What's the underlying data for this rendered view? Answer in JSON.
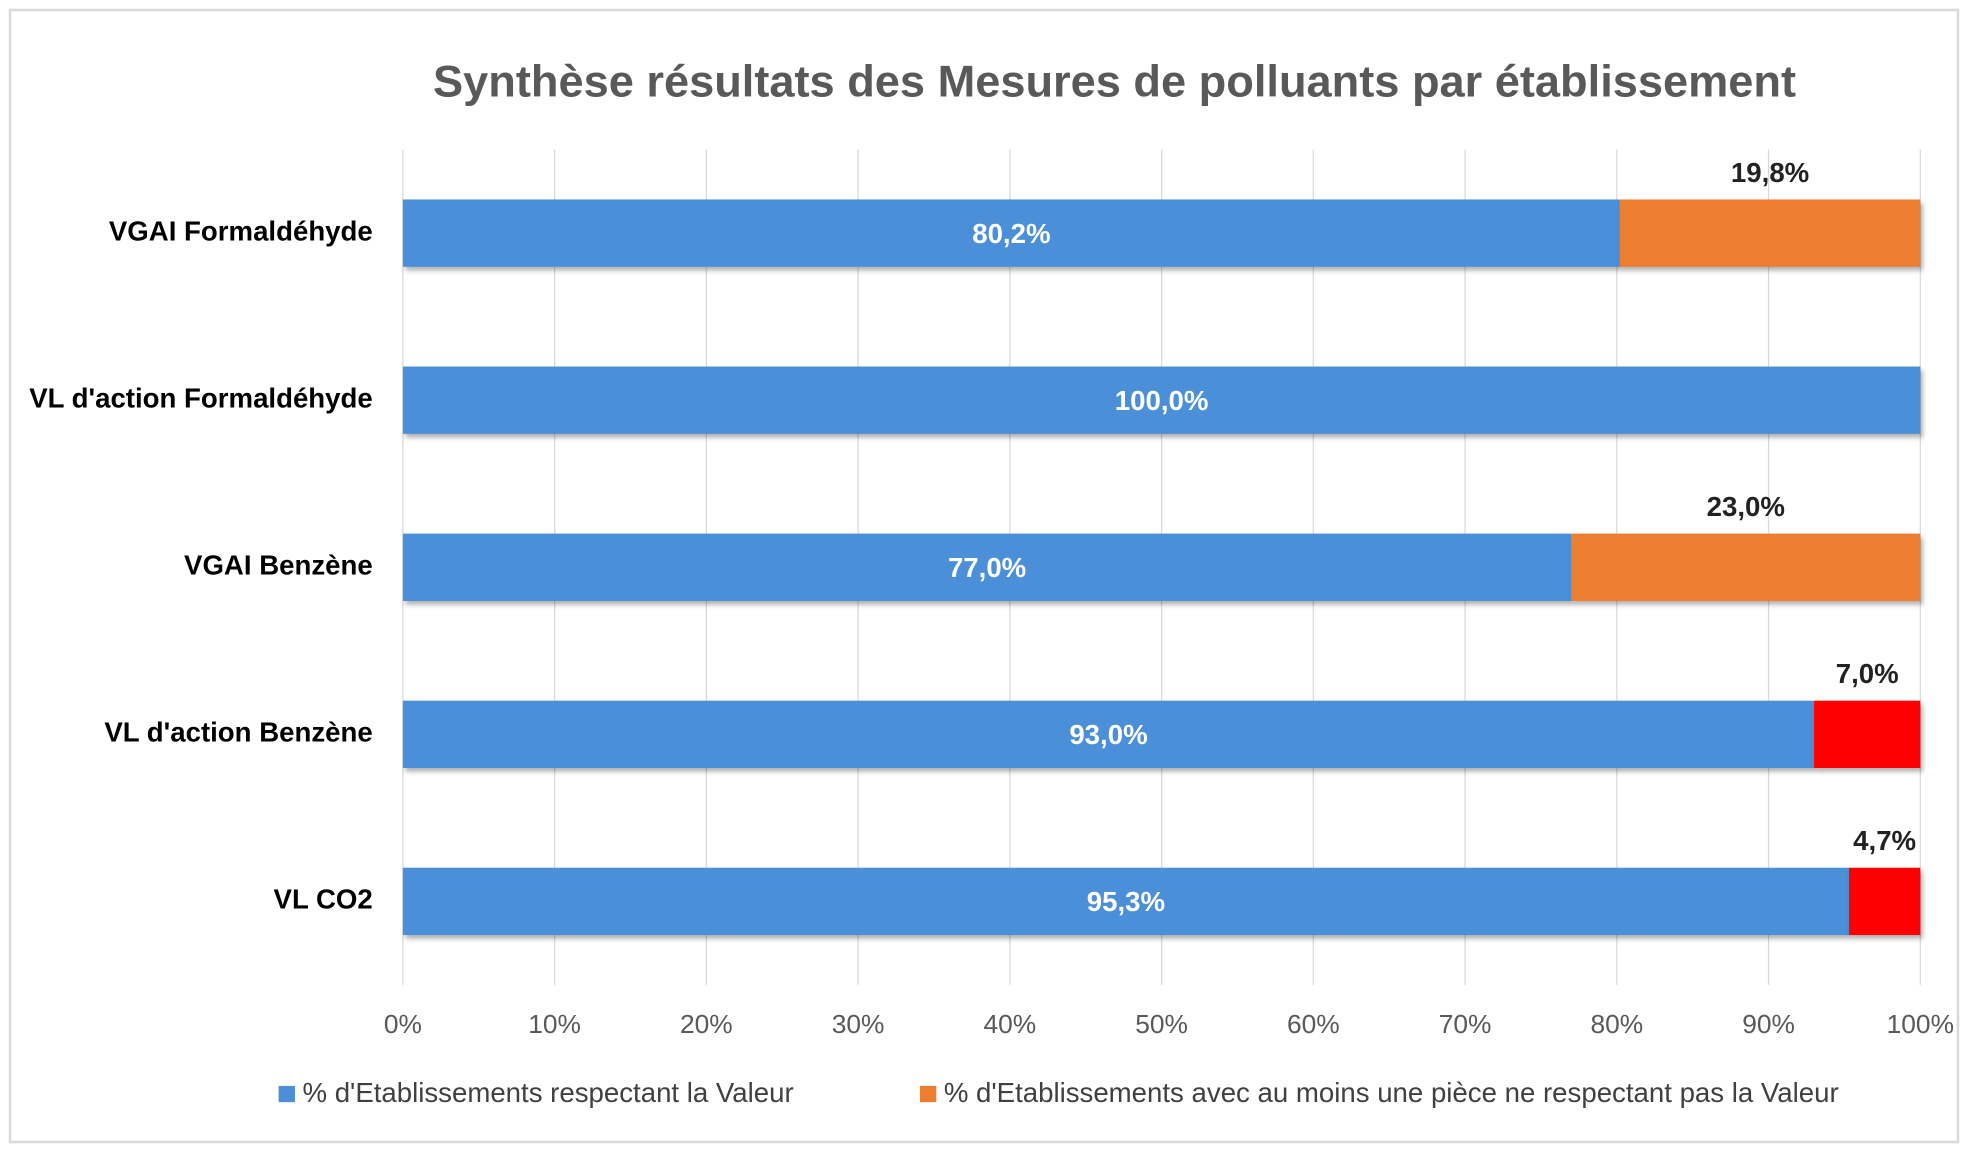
{
  "chart_data": {
    "type": "stacked_barh",
    "title": "Synthèse résultats des Mesures de polluants par établissement",
    "categories": [
      "VGAI Formaldéhyde",
      "VL d'action Formaldéhyde",
      "VGAI Benzène",
      "VL d'action Benzène",
      "VL CO2"
    ],
    "series": [
      {
        "name": "% d'Etablissements respectant la Valeur",
        "color": "#4a8fd8",
        "values": [
          80.2,
          100,
          77,
          93,
          95.3
        ],
        "value_labels": [
          "80,2%",
          "100,0%",
          "77,0%",
          "93,0%",
          "95,3%"
        ]
      },
      {
        "name": "% d'Etablissements avec au moins une pièce ne respectant pas la Valeur",
        "color": "#ed7d31",
        "point_colors": [
          "#ed7d31",
          null,
          "#ed7d31",
          "#ff0000",
          "#ff0000"
        ],
        "values": [
          19.8,
          null,
          23,
          7,
          4.7
        ],
        "value_labels": [
          "19,8%",
          null,
          "23,0%",
          "7,0%",
          "4,7%"
        ]
      }
    ],
    "xlim": [
      0,
      100
    ],
    "xticks": [
      {
        "value": 0,
        "label": "0%"
      },
      {
        "value": 10,
        "label": "10%"
      },
      {
        "value": 20,
        "label": "20%"
      },
      {
        "value": 30,
        "label": "30%"
      },
      {
        "value": 40,
        "label": "40%"
      },
      {
        "value": 50,
        "label": "50%"
      },
      {
        "value": 60,
        "label": "60%"
      },
      {
        "value": 70,
        "label": "70%"
      },
      {
        "value": 80,
        "label": "80%"
      },
      {
        "value": 90,
        "label": "90%"
      },
      {
        "value": 100,
        "label": "100%"
      }
    ],
    "grid": true,
    "legend": "bottom"
  }
}
